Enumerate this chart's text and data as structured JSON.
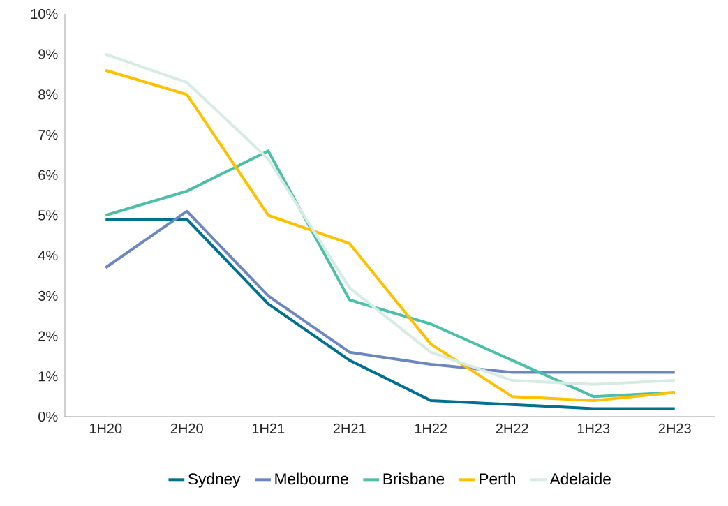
{
  "chart_data": {
    "type": "line",
    "categories": [
      "1H20",
      "2H20",
      "1H21",
      "2H21",
      "1H22",
      "2H22",
      "1H23",
      "2H23"
    ],
    "series": [
      {
        "name": "Sydney",
        "color": "#00708f",
        "values": [
          4.9,
          4.9,
          2.8,
          1.4,
          0.4,
          0.3,
          0.2,
          0.2
        ]
      },
      {
        "name": "Melbourne",
        "color": "#6c87c0",
        "values": [
          3.7,
          5.1,
          3.0,
          1.6,
          1.3,
          1.1,
          1.1,
          1.1
        ]
      },
      {
        "name": "Brisbane",
        "color": "#4dbfa8",
        "values": [
          5.0,
          5.6,
          6.6,
          2.9,
          2.3,
          1.4,
          0.5,
          0.6
        ]
      },
      {
        "name": "Perth",
        "color": "#ffc000",
        "values": [
          8.6,
          8.0,
          5.0,
          4.3,
          1.8,
          0.5,
          0.4,
          0.6
        ]
      },
      {
        "name": "Adelaide",
        "color": "#d6ebe4",
        "values": [
          9.0,
          8.3,
          6.4,
          3.2,
          1.6,
          0.9,
          0.8,
          0.9
        ]
      }
    ],
    "ylim": [
      0,
      10
    ],
    "yticks": [
      {
        "value": 0,
        "label": "0%"
      },
      {
        "value": 1,
        "label": "1%"
      },
      {
        "value": 2,
        "label": "2%"
      },
      {
        "value": 3,
        "label": "3%"
      },
      {
        "value": 4,
        "label": "4%"
      },
      {
        "value": 5,
        "label": "5%"
      },
      {
        "value": 6,
        "label": "6%"
      },
      {
        "value": 7,
        "label": "7%"
      },
      {
        "value": 8,
        "label": "8%"
      },
      {
        "value": 9,
        "label": "9%"
      },
      {
        "value": 10,
        "label": "10%"
      }
    ],
    "grid": false,
    "legend": "bottom",
    "marker": "none",
    "line_style": "solid"
  }
}
